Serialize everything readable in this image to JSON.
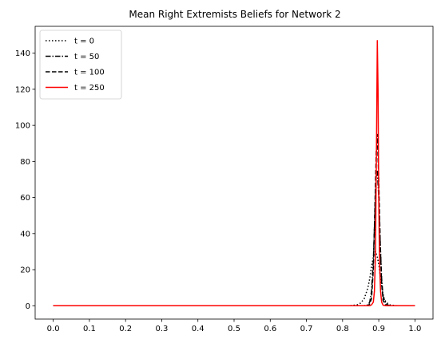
{
  "chart_data": {
    "type": "line",
    "title": "Mean Right Extremists Beliefs for Network 2",
    "xlabel": "",
    "ylabel": "",
    "xlim": [
      -0.05,
      1.05
    ],
    "ylim": [
      -7.4,
      154.9
    ],
    "xticks": [
      0.0,
      0.1,
      0.2,
      0.3,
      0.4,
      0.5,
      0.6,
      0.7,
      0.8,
      0.9,
      1.0
    ],
    "xtick_labels": [
      "0.0",
      "0.1",
      "0.2",
      "0.3",
      "0.4",
      "0.5",
      "0.6",
      "0.7",
      "0.8",
      "0.9",
      "1.0"
    ],
    "yticks": [
      0,
      20,
      40,
      60,
      80,
      100,
      120,
      140
    ],
    "ytick_labels": [
      "0",
      "20",
      "40",
      "60",
      "80",
      "100",
      "120",
      "140"
    ],
    "grid": false,
    "legend_position": "top-left",
    "series": [
      {
        "name": "t = 0",
        "color": "#000000",
        "style": "dotted",
        "x": [
          0.0,
          0.82,
          0.84,
          0.85,
          0.86,
          0.87,
          0.875,
          0.88,
          0.885,
          0.89,
          0.895,
          0.9,
          0.905,
          0.91,
          0.915,
          0.92,
          0.93,
          0.95,
          1.0
        ],
        "y": [
          0,
          0,
          0.5,
          1.5,
          4,
          10,
          15,
          22,
          27,
          30,
          28,
          23,
          15,
          8,
          4,
          2,
          0.5,
          0,
          0
        ]
      },
      {
        "name": "t = 50",
        "color": "#000000",
        "style": "dashdot",
        "x": [
          0.0,
          0.86,
          0.87,
          0.875,
          0.88,
          0.885,
          0.89,
          0.893,
          0.896,
          0.9,
          0.904,
          0.908,
          0.912,
          0.92,
          0.93,
          1.0
        ],
        "y": [
          0,
          0,
          0.5,
          2,
          8,
          25,
          55,
          72,
          75,
          60,
          35,
          15,
          5,
          1,
          0,
          0
        ]
      },
      {
        "name": "t = 100",
        "color": "#000000",
        "style": "dashed",
        "x": [
          0.0,
          0.87,
          0.875,
          0.88,
          0.885,
          0.89,
          0.893,
          0.896,
          0.9,
          0.904,
          0.908,
          0.912,
          0.92,
          1.0
        ],
        "y": [
          0,
          0,
          1,
          4,
          20,
          60,
          85,
          95,
          70,
          35,
          12,
          3,
          0,
          0
        ]
      },
      {
        "name": "t = 250",
        "color": "#ff0000",
        "style": "solid",
        "x": [
          0.0,
          0.875,
          0.88,
          0.885,
          0.888,
          0.891,
          0.894,
          0.896,
          0.898,
          0.9,
          0.902,
          0.905,
          0.908,
          0.912,
          0.92,
          1.0
        ],
        "y": [
          0,
          0,
          0.5,
          2,
          8,
          30,
          95,
          147,
          120,
          60,
          25,
          8,
          2,
          0.3,
          0,
          0
        ]
      }
    ]
  }
}
